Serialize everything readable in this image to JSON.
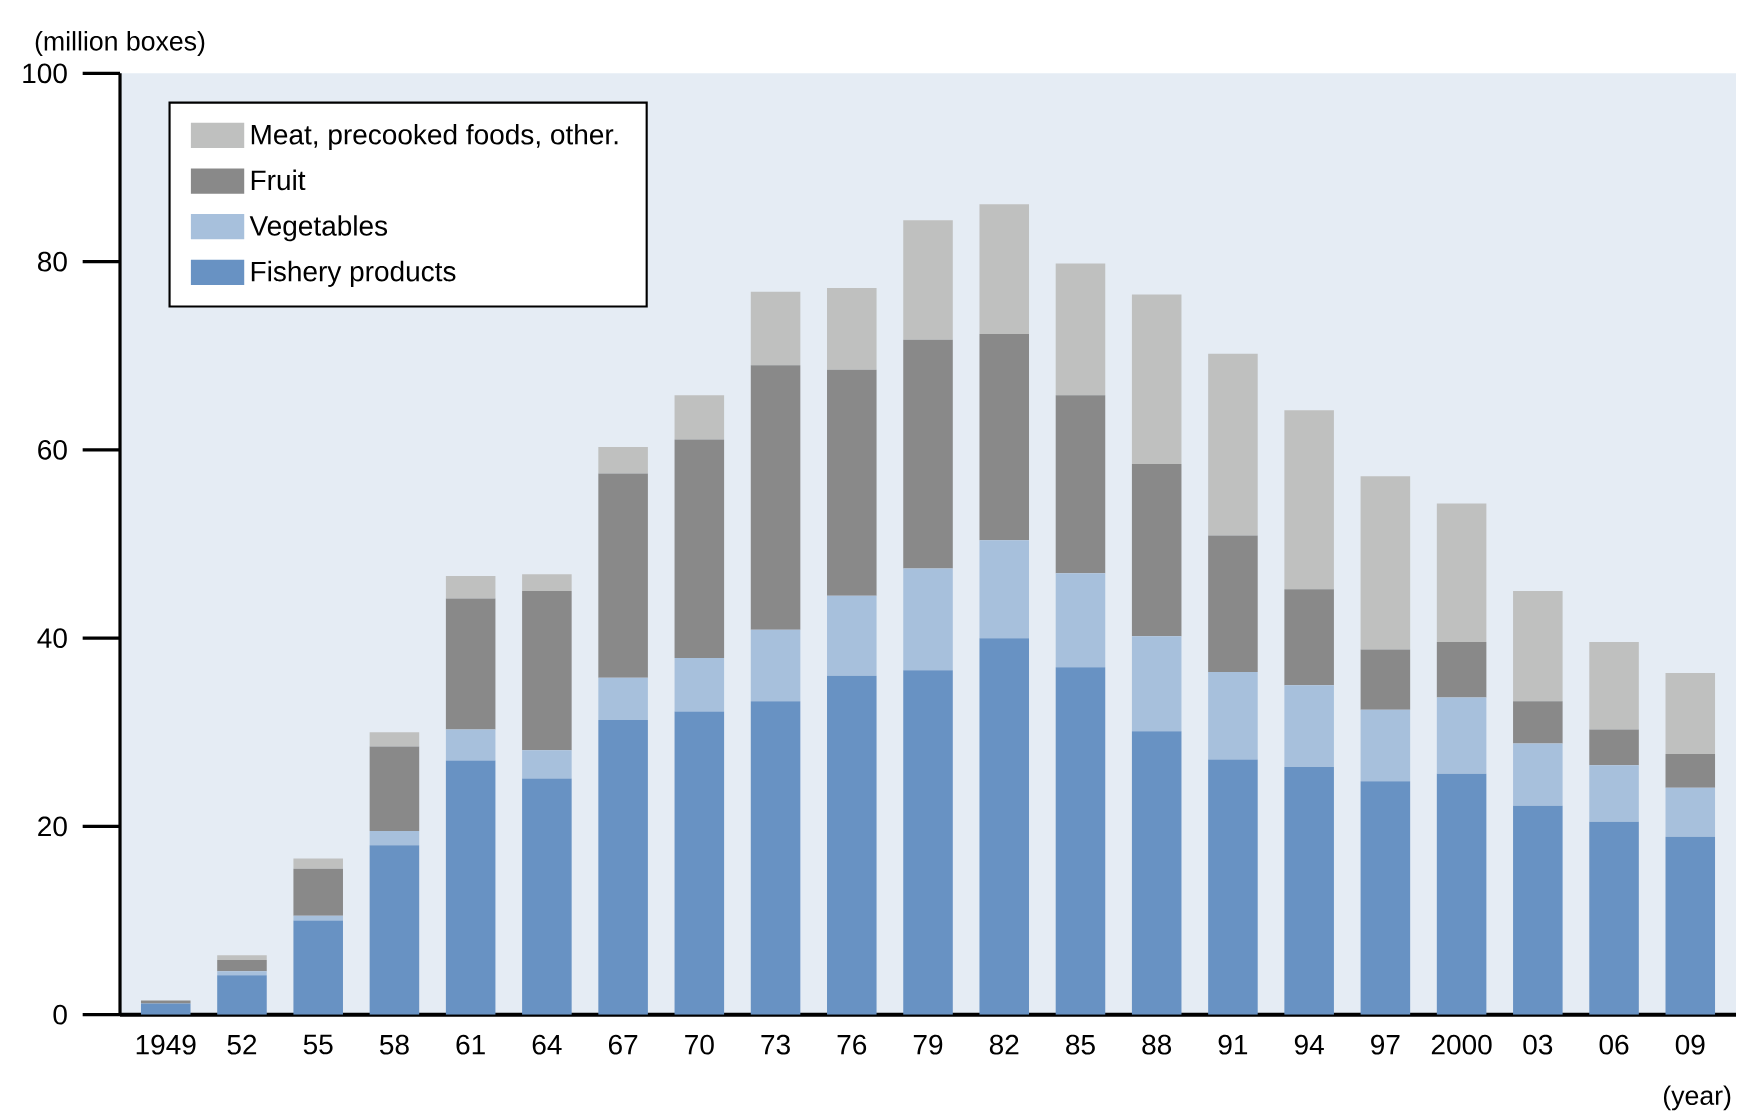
{
  "chart_data": {
    "type": "bar",
    "stacked": true,
    "ylabel": "(million boxes)",
    "xlabel": "(year)",
    "categories": [
      "1949",
      "52",
      "55",
      "58",
      "61",
      "64",
      "67",
      "70",
      "73",
      "76",
      "79",
      "82",
      "85",
      "88",
      "91",
      "94",
      "97",
      "2000",
      "03",
      "06",
      "09"
    ],
    "series": [
      {
        "name": "Fishery products",
        "color": "#6892c3",
        "values": [
          1.2,
          4.2,
          10,
          18,
          27,
          25.1,
          31.3,
          32.2,
          33.3,
          36,
          36.6,
          40,
          36.9,
          30.1,
          27.1,
          26.3,
          24.8,
          25.6,
          22.2,
          20.5,
          18.9
        ]
      },
      {
        "name": "Vegetables",
        "color": "#a7c0dc",
        "values": [
          0,
          0.4,
          0.5,
          1.5,
          3.3,
          3,
          4.5,
          5.7,
          7.6,
          8.5,
          10.8,
          10.4,
          10,
          10.1,
          9.3,
          8.7,
          7.6,
          8.1,
          6.6,
          6,
          5.2
        ]
      },
      {
        "name": "Fruit",
        "color": "#898989",
        "values": [
          0.3,
          1.2,
          5,
          9,
          13.9,
          16.9,
          21.7,
          23.2,
          28.1,
          24,
          24.3,
          21.9,
          18.9,
          18.3,
          14.5,
          10.2,
          6.4,
          5.9,
          4.5,
          3.8,
          3.6
        ]
      },
      {
        "name": "Meat, precooked foods, other.",
        "color": "#bfc0bf",
        "values": [
          0,
          0.5,
          1.1,
          1.5,
          2.4,
          1.8,
          2.8,
          4.7,
          7.8,
          8.7,
          12.7,
          13.8,
          14,
          18,
          19.3,
          19,
          18.4,
          14.7,
          11.7,
          9.3,
          8.6
        ]
      }
    ],
    "ylim": [
      0,
      100
    ],
    "yticks": [
      0,
      20,
      40,
      60,
      80,
      100
    ],
    "legend": "top left"
  }
}
